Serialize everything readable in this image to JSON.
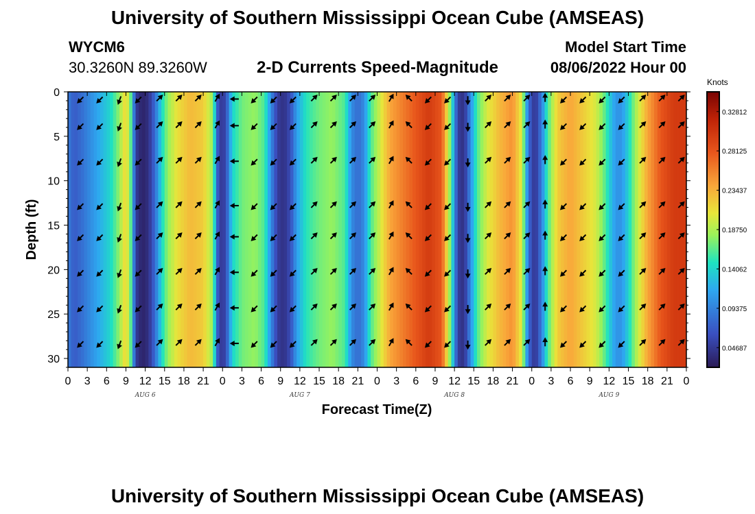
{
  "header": {
    "title": "University of Southern Mississippi Ocean Cube (AMSEAS)",
    "station_id": "WYCM6",
    "coords": "30.3260N  89.3260W",
    "subtitle": "2-D Currents Speed-Magnitude",
    "model_start_label": "Model Start Time",
    "model_start_value": "08/06/2022 Hour 00"
  },
  "footer": {
    "title": "University of Southern Mississippi Ocean Cube (AMSEAS)"
  },
  "chart_data": {
    "type": "heatmap",
    "title": "2-D Currents Speed-Magnitude",
    "xlabel": "Forecast Time(Z)",
    "ylabel": "Depth (ft)",
    "x_range_hours": [
      0,
      96
    ],
    "y_range_ft": [
      0,
      31
    ],
    "x_tick_labels": [
      "0",
      "3",
      "6",
      "9",
      "12",
      "15",
      "18",
      "21",
      "0",
      "3",
      "6",
      "9",
      "12",
      "15",
      "18",
      "21",
      "0",
      "3",
      "6",
      "9",
      "12",
      "15",
      "18",
      "21",
      "0",
      "3",
      "6",
      "9",
      "12",
      "15",
      "18",
      "21",
      "0"
    ],
    "y_tick_labels": [
      "0",
      "5",
      "10",
      "15",
      "20",
      "25",
      "30"
    ],
    "date_labels": [
      {
        "label": "AUG 6",
        "hour": 12
      },
      {
        "label": "AUG 7",
        "hour": 36
      },
      {
        "label": "AUG 8",
        "hour": 60
      },
      {
        "label": "AUG 9",
        "hour": 84
      }
    ],
    "colorbar": {
      "units": "Knots",
      "range": [
        0.0234,
        0.3516
      ],
      "tick_labels": [
        "0.32812",
        "0.28125",
        "0.23437",
        "0.18750",
        "0.14062",
        "0.09375",
        "0.04687"
      ],
      "tick_values": [
        0.32812,
        0.28125,
        0.23437,
        0.1875,
        0.14062,
        0.09375,
        0.04687
      ]
    },
    "speed_profile_knots": [
      {
        "h": 0,
        "s": 0.09
      },
      {
        "h": 1,
        "s": 0.07
      },
      {
        "h": 2,
        "s": 0.08
      },
      {
        "h": 3.5,
        "s": 0.1
      },
      {
        "h": 5,
        "s": 0.12
      },
      {
        "h": 6.5,
        "s": 0.14
      },
      {
        "h": 8,
        "s": 0.18
      },
      {
        "h": 9,
        "s": 0.22
      },
      {
        "h": 9.8,
        "s": 0.16
      },
      {
        "h": 10.5,
        "s": 0.05
      },
      {
        "h": 11.5,
        "s": 0.03
      },
      {
        "h": 12.5,
        "s": 0.04
      },
      {
        "h": 13.5,
        "s": 0.08
      },
      {
        "h": 14.5,
        "s": 0.14
      },
      {
        "h": 15.5,
        "s": 0.18
      },
      {
        "h": 17,
        "s": 0.21
      },
      {
        "h": 19,
        "s": 0.23
      },
      {
        "h": 21,
        "s": 0.22
      },
      {
        "h": 22.5,
        "s": 0.18
      },
      {
        "h": 23.2,
        "s": 0.07
      },
      {
        "h": 24,
        "s": 0.04
      },
      {
        "h": 24.8,
        "s": 0.08
      },
      {
        "h": 25.5,
        "s": 0.14
      },
      {
        "h": 27,
        "s": 0.17
      },
      {
        "h": 29,
        "s": 0.18
      },
      {
        "h": 30.5,
        "s": 0.16
      },
      {
        "h": 31.5,
        "s": 0.1
      },
      {
        "h": 32.5,
        "s": 0.05
      },
      {
        "h": 33.5,
        "s": 0.04
      },
      {
        "h": 34.5,
        "s": 0.06
      },
      {
        "h": 35.5,
        "s": 0.11
      },
      {
        "h": 37,
        "s": 0.15
      },
      {
        "h": 39,
        "s": 0.17
      },
      {
        "h": 41,
        "s": 0.18
      },
      {
        "h": 43,
        "s": 0.16
      },
      {
        "h": 44,
        "s": 0.1
      },
      {
        "h": 45,
        "s": 0.08
      },
      {
        "h": 46,
        "s": 0.1
      },
      {
        "h": 47,
        "s": 0.16
      },
      {
        "h": 48.5,
        "s": 0.2
      },
      {
        "h": 50,
        "s": 0.24
      },
      {
        "h": 52,
        "s": 0.26
      },
      {
        "h": 54,
        "s": 0.28
      },
      {
        "h": 56,
        "s": 0.3
      },
      {
        "h": 58,
        "s": 0.28
      },
      {
        "h": 59.5,
        "s": 0.16
      },
      {
        "h": 60.5,
        "s": 0.05
      },
      {
        "h": 61.5,
        "s": 0.04
      },
      {
        "h": 62.5,
        "s": 0.1
      },
      {
        "h": 63.5,
        "s": 0.16
      },
      {
        "h": 65,
        "s": 0.2
      },
      {
        "h": 67,
        "s": 0.23
      },
      {
        "h": 69,
        "s": 0.25
      },
      {
        "h": 70.5,
        "s": 0.2
      },
      {
        "h": 71.5,
        "s": 0.08
      },
      {
        "h": 72.5,
        "s": 0.04
      },
      {
        "h": 73.5,
        "s": 0.09
      },
      {
        "h": 74.5,
        "s": 0.16
      },
      {
        "h": 76,
        "s": 0.22
      },
      {
        "h": 78,
        "s": 0.24
      },
      {
        "h": 80,
        "s": 0.22
      },
      {
        "h": 82,
        "s": 0.2
      },
      {
        "h": 83.5,
        "s": 0.16
      },
      {
        "h": 84.5,
        "s": 0.12
      },
      {
        "h": 85.5,
        "s": 0.1
      },
      {
        "h": 86.5,
        "s": 0.12
      },
      {
        "h": 88,
        "s": 0.18
      },
      {
        "h": 90,
        "s": 0.24
      },
      {
        "h": 92,
        "s": 0.28
      },
      {
        "h": 94,
        "s": 0.3
      },
      {
        "h": 96,
        "s": 0.3
      }
    ],
    "arrow_depths_ft": [
      0.5,
      3.5,
      7.5,
      12.5,
      16,
      20,
      24,
      28
    ],
    "arrow_columns_hours": [
      2.5,
      5.5,
      8.5,
      11.5,
      14.5,
      17.5,
      20.5,
      23.5,
      26.5,
      29.5,
      32.5,
      35.5,
      38.5,
      41.5,
      44.5,
      47.5,
      50.5,
      53.5,
      56.5,
      59.5,
      62.5,
      65.5,
      68.5,
      71.5,
      74.5,
      77.5,
      80.5,
      83.5,
      86.5,
      89.5,
      92.5,
      95.5
    ],
    "arrow_direction_deg_by_hour": [
      {
        "h": 2.5,
        "d": 225
      },
      {
        "h": 5.5,
        "d": 225
      },
      {
        "h": 8.5,
        "d": 200
      },
      {
        "h": 11.5,
        "d": 225
      },
      {
        "h": 14.5,
        "d": 45
      },
      {
        "h": 17.5,
        "d": 45
      },
      {
        "h": 20.5,
        "d": 45
      },
      {
        "h": 23.5,
        "d": 30
      },
      {
        "h": 26.5,
        "d": 270
      },
      {
        "h": 29.5,
        "d": 225
      },
      {
        "h": 32.5,
        "d": 225
      },
      {
        "h": 35.5,
        "d": 225
      },
      {
        "h": 38.5,
        "d": 45
      },
      {
        "h": 41.5,
        "d": 45
      },
      {
        "h": 44.5,
        "d": 45
      },
      {
        "h": 47.5,
        "d": 45
      },
      {
        "h": 50.5,
        "d": 30
      },
      {
        "h": 53.5,
        "d": 315
      },
      {
        "h": 56.5,
        "d": 225
      },
      {
        "h": 59.5,
        "d": 225
      },
      {
        "h": 62.5,
        "d": 180
      },
      {
        "h": 65.5,
        "d": 45
      },
      {
        "h": 68.5,
        "d": 45
      },
      {
        "h": 71.5,
        "d": 45
      },
      {
        "h": 74.5,
        "d": 0
      },
      {
        "h": 77.5,
        "d": 225
      },
      {
        "h": 80.5,
        "d": 225
      },
      {
        "h": 83.5,
        "d": 225
      },
      {
        "h": 86.5,
        "d": 225
      },
      {
        "h": 89.5,
        "d": 45
      },
      {
        "h": 92.5,
        "d": 45
      },
      {
        "h": 95.5,
        "d": 45
      }
    ]
  }
}
